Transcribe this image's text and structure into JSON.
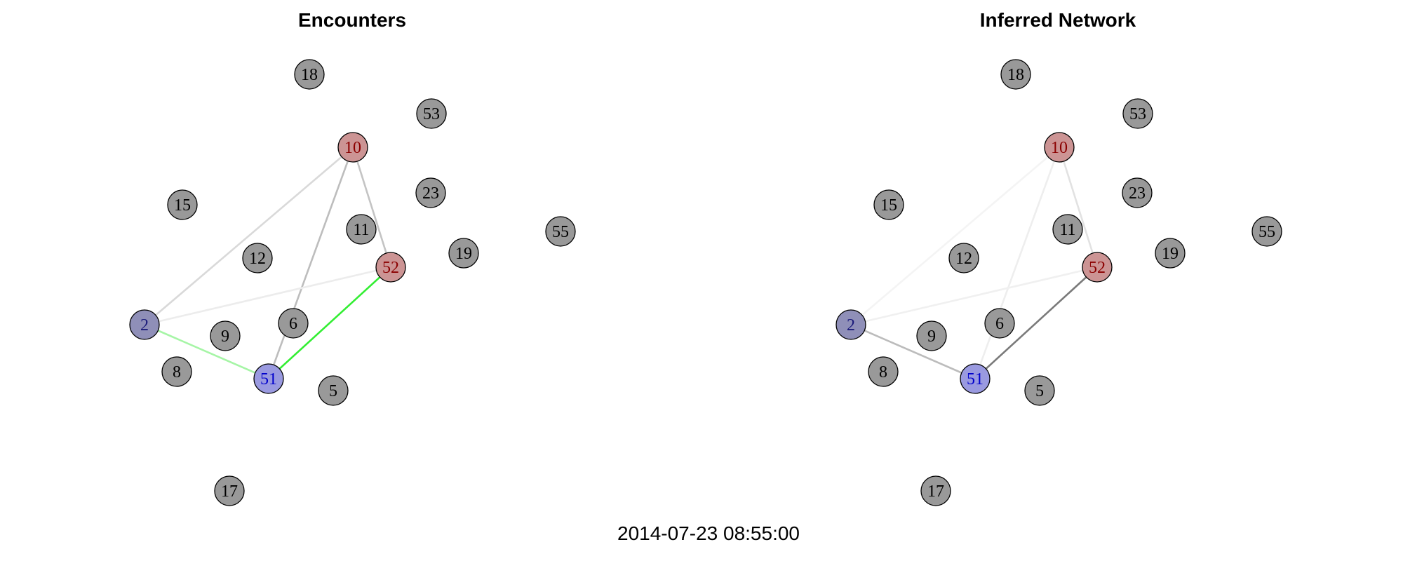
{
  "timestamp": "2014-07-23 08:55:00",
  "colors": {
    "default_node": "#999999",
    "default_label": "#000000",
    "red_node": "#cc9494",
    "red_label": "#8b0000",
    "blue_node": "#8f8fb8",
    "blue_label": "#1a1a7a",
    "blue_node_light": "#9a9ae0",
    "blue_label_light": "#0000cc"
  },
  "panels": [
    {
      "id": "encounters",
      "title": "Encounters",
      "edges": [
        {
          "from": "10",
          "to": "2",
          "color": "#d9d9d9"
        },
        {
          "from": "10",
          "to": "51",
          "color": "#bdbdbd"
        },
        {
          "from": "10",
          "to": "52",
          "color": "#c4c4c4"
        },
        {
          "from": "2",
          "to": "52",
          "color": "#ececec"
        },
        {
          "from": "2",
          "to": "51",
          "color": "#a6f5a6"
        },
        {
          "from": "52",
          "to": "51",
          "color": "#33ee33"
        }
      ]
    },
    {
      "id": "inferred",
      "title": "Inferred Network",
      "edges": [
        {
          "from": "10",
          "to": "2",
          "color": "#f4f4f4"
        },
        {
          "from": "10",
          "to": "51",
          "color": "#eeeeee"
        },
        {
          "from": "10",
          "to": "52",
          "color": "#e2e2e2"
        },
        {
          "from": "2",
          "to": "52",
          "color": "#f0f0f0"
        },
        {
          "from": "2",
          "to": "51",
          "color": "#bcbcbc"
        },
        {
          "from": "52",
          "to": "51",
          "color": "#7a7a7a"
        }
      ]
    }
  ],
  "nodes": [
    {
      "id": "18",
      "type": "default"
    },
    {
      "id": "53",
      "type": "default"
    },
    {
      "id": "10",
      "type": "red"
    },
    {
      "id": "15",
      "type": "default"
    },
    {
      "id": "23",
      "type": "default"
    },
    {
      "id": "11",
      "type": "default"
    },
    {
      "id": "55",
      "type": "default"
    },
    {
      "id": "12",
      "type": "default"
    },
    {
      "id": "19",
      "type": "default"
    },
    {
      "id": "52",
      "type": "red"
    },
    {
      "id": "2",
      "type": "blue"
    },
    {
      "id": "6",
      "type": "default"
    },
    {
      "id": "9",
      "type": "default"
    },
    {
      "id": "8",
      "type": "default"
    },
    {
      "id": "51",
      "type": "blue-light"
    },
    {
      "id": "5",
      "type": "default"
    },
    {
      "id": "17",
      "type": "default"
    }
  ]
}
